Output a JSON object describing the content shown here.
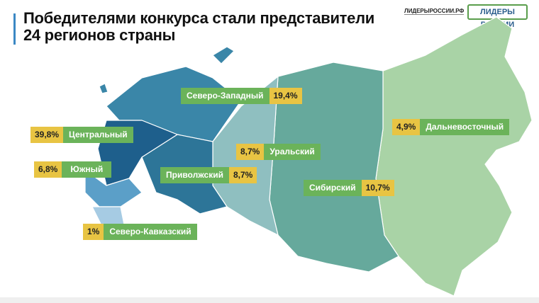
{
  "header": {
    "title_line1": "Победителями конкурса стали представители",
    "title_line2": "24 регионов страны",
    "site": "ЛИДЕРЫРОССИИ.РФ",
    "logo": "ЛИДЕРЫ РОССИИ"
  },
  "colors": {
    "accent_yellow": "#e8c443",
    "accent_green": "#6bb35a",
    "title_bar": "#3b88c4"
  },
  "districts": [
    {
      "name": "Центральный",
      "share": "39,8%",
      "color": "#1e5f8c"
    },
    {
      "name": "Южный",
      "share": "6,8%",
      "color": "#5b9fc8"
    },
    {
      "name": "Северо-Кавказский",
      "share": "1%",
      "color": "#a6cbe3"
    },
    {
      "name": "Северо-Западный",
      "share": "19,4%",
      "color": "#3a86a8"
    },
    {
      "name": "Уральский",
      "share": "8,7%",
      "color": "#8fbfc0"
    },
    {
      "name": "Приволжский",
      "share": "8,7%",
      "color": "#2d7598"
    },
    {
      "name": "Сибирский",
      "share": "10,7%",
      "color": "#66a99c"
    },
    {
      "name": "Дальневосточный",
      "share": "4,9%",
      "color": "#a9d3a6"
    }
  ]
}
